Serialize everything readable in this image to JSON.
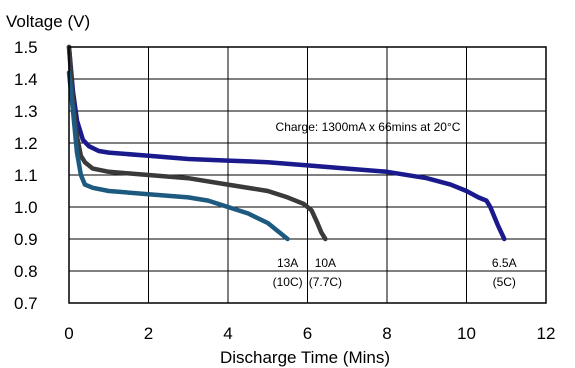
{
  "chart_data": {
    "type": "line",
    "ylabel": "Voltage (V)",
    "xlabel": "Discharge Time (Mins)",
    "xlim": [
      0,
      12
    ],
    "ylim": [
      0.7,
      1.5
    ],
    "xticks": [
      0,
      2,
      4,
      6,
      8,
      10,
      12
    ],
    "yticks": [
      1.5,
      1.4,
      1.3,
      1.2,
      1.1,
      1.0,
      0.9,
      0.8,
      0.7
    ],
    "ytick_labels": [
      "1.5",
      "1.4",
      "1.3",
      "1.2",
      "1.1",
      "1.0",
      "0.9",
      "0.8",
      "0.7"
    ],
    "grid": true,
    "annotation": "Charge: 1300mA x 66mins at 20°C",
    "series": [
      {
        "label_lines": [
          "6.5A",
          "(5C)"
        ],
        "color": "#1a1a8c",
        "x": [
          0,
          0.1,
          0.2,
          0.35,
          0.5,
          0.75,
          1.0,
          2.0,
          3.0,
          4.0,
          5.0,
          6.0,
          7.0,
          8.0,
          9.0,
          9.6,
          10.0,
          10.3,
          10.5,
          10.6,
          10.7,
          10.8,
          10.95
        ],
        "y": [
          1.5,
          1.36,
          1.27,
          1.21,
          1.19,
          1.175,
          1.17,
          1.16,
          1.15,
          1.145,
          1.14,
          1.13,
          1.12,
          1.11,
          1.09,
          1.07,
          1.05,
          1.03,
          1.02,
          1.0,
          0.97,
          0.94,
          0.9
        ]
      },
      {
        "label_lines": [
          "10A",
          "(7.7C)"
        ],
        "color": "#3a3a3a",
        "x": [
          0,
          0.1,
          0.2,
          0.3,
          0.4,
          0.6,
          1.0,
          2.0,
          3.0,
          4.0,
          5.0,
          5.5,
          5.9,
          6.1,
          6.25,
          6.35,
          6.45
        ],
        "y": [
          1.5,
          1.33,
          1.22,
          1.16,
          1.14,
          1.12,
          1.11,
          1.1,
          1.09,
          1.07,
          1.05,
          1.03,
          1.01,
          0.99,
          0.95,
          0.92,
          0.9
        ]
      },
      {
        "label_lines": [
          "13A",
          "(10C)"
        ],
        "color": "#1e5a80",
        "x": [
          0,
          0.1,
          0.2,
          0.3,
          0.4,
          0.6,
          1.0,
          2.0,
          3.0,
          3.5,
          4.0,
          4.5,
          5.0,
          5.3,
          5.5
        ],
        "y": [
          1.42,
          1.3,
          1.17,
          1.1,
          1.07,
          1.06,
          1.05,
          1.04,
          1.03,
          1.02,
          1.0,
          0.98,
          0.95,
          0.92,
          0.9
        ]
      }
    ]
  }
}
